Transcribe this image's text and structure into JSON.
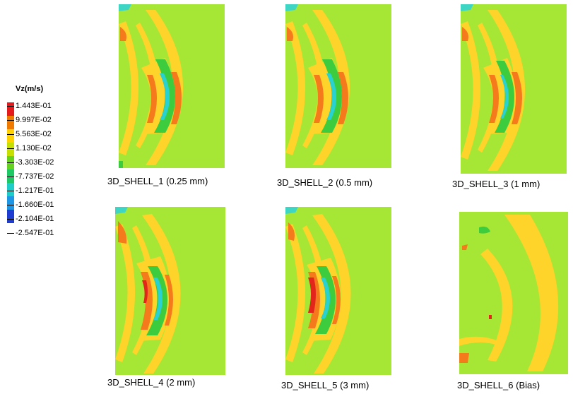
{
  "legend": {
    "title": "Vz(m/s)",
    "levels": [
      "1.443E-01",
      "9.997E-02",
      "5.563E-02",
      "1.130E-02",
      "-3.303E-02",
      "-7.737E-02",
      "-1.217E-01",
      "-1.660E-01",
      "-2.104E-01",
      "-2.547E-01"
    ],
    "colors": [
      "#e41a1c",
      "#f07a00",
      "#ffd200",
      "#c8e000",
      "#64d21e",
      "#1ec864",
      "#1ecdc8",
      "#1e96e6",
      "#1e3cd2"
    ]
  },
  "panels": [
    {
      "caption": "3D_SHELL_1 (0.25 mm)"
    },
    {
      "caption": "3D_SHELL_2 (0.5 mm)"
    },
    {
      "caption": "3D_SHELL_3 (1 mm)"
    },
    {
      "caption": "3D_SHELL_4 (2 mm)"
    },
    {
      "caption": "3D_SHELL_5 (3 mm)"
    },
    {
      "caption": "3D_SHELL_6 (Bias)"
    }
  ],
  "colors": {
    "background_field": "#a6e635",
    "yellow_band": "#ffd42a",
    "orange_band": "#f47a1c",
    "red_band": "#e3261c",
    "green_band": "#3dcc3d",
    "cyan_band": "#2ad1d1",
    "corner_cyan": "#3fd5c5"
  }
}
